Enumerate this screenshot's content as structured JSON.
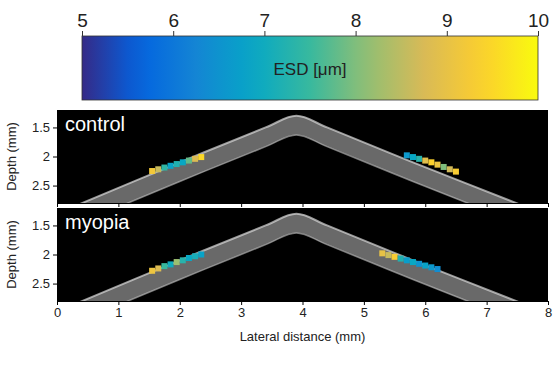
{
  "chart_data": [
    {
      "type": "scatter",
      "title": "control",
      "marker": "square",
      "tick_labels": "y",
      "ylabel": "Depth (mm)",
      "xlim": [
        0,
        8
      ],
      "xticks": [
        0,
        1,
        2,
        3,
        4,
        5,
        6,
        7,
        8
      ],
      "ylim": [
        1.2,
        2.8
      ],
      "yticks": [
        1.5,
        2,
        2.5
      ],
      "colorbar": {
        "label": "ESD [μm]",
        "range": [
          5,
          10
        ],
        "ticks": [
          5,
          6,
          7,
          8,
          9,
          10
        ]
      },
      "series": [
        {
          "x": [
            1.55,
            1.65,
            1.75,
            1.85,
            1.95,
            2.05,
            2.15,
            2.25,
            2.35
          ],
          "y": [
            2.25,
            2.22,
            2.19,
            2.16,
            2.13,
            2.1,
            2.07,
            2.04,
            2.01
          ],
          "esd": [
            9.2,
            8.6,
            7.4,
            6.8,
            7.2,
            6.9,
            7.8,
            8.8,
            9.5
          ]
        },
        {
          "x": [
            5.7,
            5.8,
            5.9,
            6.0,
            6.1,
            6.2,
            6.3,
            6.4,
            6.5
          ],
          "y": [
            1.98,
            2.01,
            2.04,
            2.07,
            2.1,
            2.14,
            2.18,
            2.22,
            2.26
          ],
          "esd": [
            6.6,
            6.9,
            7.3,
            8.9,
            9.4,
            9.1,
            8.0,
            8.7,
            9.3
          ]
        }
      ]
    },
    {
      "type": "scatter",
      "title": "myopia",
      "marker": "square",
      "xlabel": "Lateral distance (mm)",
      "ylabel": "Depth (mm)",
      "xlim": [
        0,
        8
      ],
      "xticks": [
        0,
        1,
        2,
        3,
        4,
        5,
        6,
        7,
        8
      ],
      "ylim": [
        1.2,
        2.8
      ],
      "yticks": [
        1.5,
        2,
        2.5
      ],
      "series": [
        {
          "x": [
            1.55,
            1.65,
            1.75,
            1.85,
            1.95,
            2.05,
            2.15,
            2.25,
            2.35
          ],
          "y": [
            2.28,
            2.24,
            2.2,
            2.17,
            2.13,
            2.1,
            2.06,
            2.03,
            2.0
          ],
          "esd": [
            9.1,
            8.8,
            7.5,
            7.0,
            8.2,
            7.3,
            6.9,
            7.1,
            6.8
          ]
        },
        {
          "x": [
            5.3,
            5.4,
            5.5,
            5.6,
            5.7,
            5.8,
            5.9,
            6.0,
            6.1,
            6.2
          ],
          "y": [
            1.98,
            2.01,
            2.04,
            2.07,
            2.1,
            2.13,
            2.16,
            2.19,
            2.22,
            2.25
          ],
          "esd": [
            9.0,
            8.6,
            9.3,
            7.2,
            6.7,
            6.9,
            6.5,
            6.8,
            6.6,
            6.4
          ]
        }
      ]
    }
  ]
}
